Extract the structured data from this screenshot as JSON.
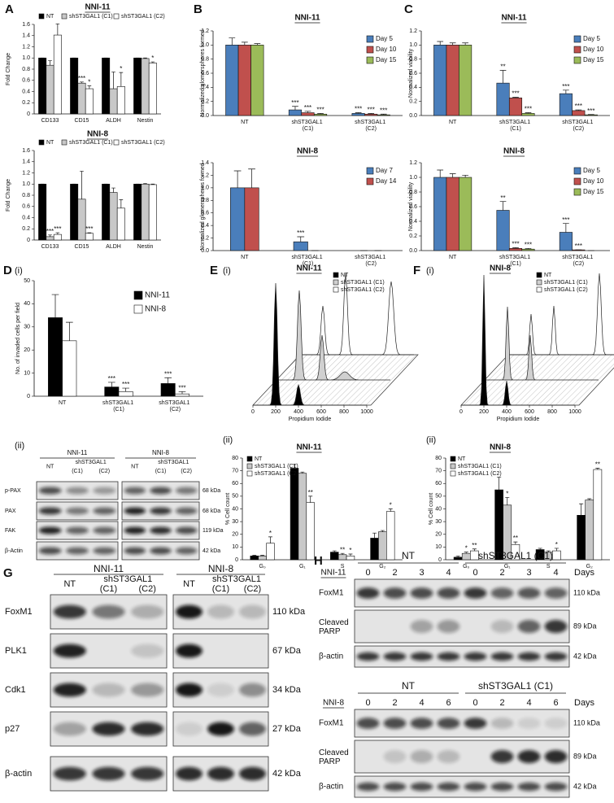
{
  "labels": [
    "A",
    "B",
    "C",
    "D",
    "(i)",
    "(ii)",
    "E",
    "(i)",
    "(ii)",
    "F",
    "(i)",
    "(ii)",
    "G",
    "H"
  ],
  "chart_data": [
    {
      "type": "bar",
      "title": "NNI-11",
      "ylabel": "Fold Change",
      "legend": "top",
      "categories": [
        "CD133",
        "CD15",
        "ALDH",
        "Nestin"
      ],
      "ylim": [
        0,
        1.6
      ],
      "yticks": [
        0,
        0.2,
        0.4,
        0.6,
        0.8,
        {
          "value": 1,
          "label": "1.0"
        },
        1.2,
        1.4,
        1.6
      ],
      "series": [
        {
          "name": "NT",
          "color": "#000000",
          "values": [
            1,
            1,
            1,
            1
          ],
          "errors": [
            0,
            0,
            0,
            0
          ],
          "stars": [
            null,
            null,
            null,
            null
          ]
        },
        {
          "name": "shST3GAL1 (C1)",
          "color": "#c8c8c8",
          "values": [
            0.87,
            0.55,
            0.45,
            0.99
          ],
          "errors": [
            0.08,
            0.02,
            0.3,
            0.01
          ],
          "stars": [
            null,
            "***",
            null,
            null
          ]
        },
        {
          "name": "shST3GAL1 (C2)",
          "color": "#ffffff",
          "values": [
            1.41,
            0.45,
            0.49,
            0.91
          ],
          "errors": [
            0.2,
            0.05,
            0.25,
            0.02
          ],
          "stars": [
            null,
            "*",
            "*",
            "*"
          ]
        }
      ]
    },
    {
      "type": "bar",
      "title": "NNI-8",
      "ylabel": "Fold Change",
      "legend": "top",
      "categories": [
        "CD133",
        "CD15",
        "ALDH",
        "Nestin"
      ],
      "ylim": [
        0,
        1.6
      ],
      "yticks": [
        0,
        0.2,
        0.4,
        0.6,
        0.8,
        {
          "value": 1,
          "label": "1.0"
        },
        1.2,
        1.4,
        1.6
      ],
      "series": [
        {
          "name": "NT",
          "color": "#000000",
          "values": [
            1,
            1,
            1,
            1
          ],
          "errors": [
            0,
            0,
            0,
            0
          ],
          "stars": [
            null,
            null,
            null,
            null
          ]
        },
        {
          "name": "shST3GAL1 (C1)",
          "color": "#c8c8c8",
          "values": [
            0.06,
            0.73,
            0.85,
            1.0
          ],
          "errors": [
            0.03,
            0.5,
            0.08,
            0.01
          ],
          "stars": [
            "***",
            null,
            null,
            null
          ]
        },
        {
          "name": "shST3GAL1 (C2)",
          "color": "#ffffff",
          "values": [
            0.1,
            0.12,
            0.57,
            0.99
          ],
          "errors": [
            0.03,
            0.01,
            0.15,
            0.01
          ],
          "stars": [
            "***",
            "***",
            null,
            null
          ]
        }
      ]
    },
    {
      "type": "bar",
      "title": "NNI-11",
      "ylabel": "Normalized glomerspheres formed",
      "legend": "right",
      "categories": [
        "NT",
        "shST3GAL1 (C1)",
        "shST3GAL1 (C2)"
      ],
      "ylim": [
        0,
        1.2
      ],
      "yticks": [
        {
          "value": 0,
          "label": "0.0"
        },
        0.2,
        0.4,
        0.6,
        0.8,
        {
          "value": 1,
          "label": "1.0"
        },
        1.2
      ],
      "series": [
        {
          "name": "Day 5",
          "color": "#4a7ebb",
          "values": [
            1,
            0.08,
            0.03
          ],
          "errors": [
            0.1,
            0.05,
            0.01
          ],
          "stars": [
            null,
            "***",
            "***"
          ]
        },
        {
          "name": "Day 10",
          "color": "#c0504d",
          "values": [
            1,
            0.04,
            0.02
          ],
          "errors": [
            0.04,
            0.02,
            0.01
          ],
          "stars": [
            null,
            "***",
            "***"
          ]
        },
        {
          "name": "Day 15",
          "color": "#9bbb59",
          "values": [
            1,
            0.02,
            0.01
          ],
          "errors": [
            0.02,
            0.01,
            0.01
          ],
          "stars": [
            null,
            "***",
            "***"
          ]
        }
      ]
    },
    {
      "type": "bar",
      "title": "NNI-8",
      "ylabel": "Normalized glomerspheres formed",
      "legend": "right",
      "categories": [
        "NT",
        "shST3GAL1 (C1)",
        "shST3GAL1 (C2)"
      ],
      "ylim": [
        0,
        1.4
      ],
      "yticks": [
        {
          "value": 0,
          "label": "0.0"
        },
        0.2,
        0.4,
        0.6,
        0.8,
        {
          "value": 1,
          "label": "1.0"
        },
        1.2,
        1.4
      ],
      "series": [
        {
          "name": "Day 7",
          "color": "#4a7ebb",
          "values": [
            1,
            0.14,
            0
          ],
          "errors": [
            0.27,
            0.08,
            0
          ],
          "stars": [
            null,
            "***",
            null
          ]
        },
        {
          "name": "Day 14",
          "color": "#c0504d",
          "values": [
            1,
            0,
            0
          ],
          "errors": [
            0.3,
            0,
            0
          ],
          "stars": [
            null,
            null,
            null
          ]
        }
      ]
    },
    {
      "type": "bar",
      "title": "NNI-11",
      "ylabel": "Normalized viability",
      "legend": "right",
      "categories": [
        "NT",
        "shST3GAL1 (C1)",
        "shST3GAL1 (C2)"
      ],
      "ylim": [
        0,
        1.2
      ],
      "yticks": [
        {
          "value": 0,
          "label": "0.0"
        },
        0.2,
        0.4,
        0.6,
        0.8,
        {
          "value": 1,
          "label": "1.0"
        },
        1.2
      ],
      "series": [
        {
          "name": "Day 5",
          "color": "#4a7ebb",
          "values": [
            1,
            0.46,
            0.31
          ],
          "errors": [
            0.05,
            0.18,
            0.05
          ],
          "stars": [
            null,
            "**",
            "***"
          ]
        },
        {
          "name": "Day 10",
          "color": "#c0504d",
          "values": [
            1,
            0.25,
            0.07
          ],
          "errors": [
            0.03,
            0.01,
            0.01
          ],
          "stars": [
            null,
            "***",
            "***"
          ]
        },
        {
          "name": "Day 15",
          "color": "#9bbb59",
          "values": [
            1,
            0.03,
            0.01
          ],
          "errors": [
            0.03,
            0.01,
            0.005
          ],
          "stars": [
            null,
            "***",
            "***"
          ]
        }
      ]
    },
    {
      "type": "bar",
      "title": "NNI-8",
      "ylabel": "Normalized viability",
      "legend": "right",
      "categories": [
        "NT",
        "shST3GAL1 (C1)",
        "shST3GAL1 (C2)"
      ],
      "ylim": [
        0,
        1.2
      ],
      "yticks": [
        {
          "value": 0,
          "label": "0.0"
        },
        0.2,
        0.4,
        0.6,
        0.8,
        {
          "value": 1,
          "label": "1.0"
        },
        1.2
      ],
      "series": [
        {
          "name": "Day 5",
          "color": "#4a7ebb",
          "values": [
            1,
            0.55,
            0.25
          ],
          "errors": [
            0.1,
            0.12,
            0.12
          ],
          "stars": [
            null,
            "**",
            "***"
          ]
        },
        {
          "name": "Day 10",
          "color": "#c0504d",
          "values": [
            1,
            0.03,
            0.01
          ],
          "errors": [
            0.05,
            0.01,
            0
          ],
          "stars": [
            null,
            "***",
            "***"
          ]
        },
        {
          "name": "Day 15",
          "color": "#9bbb59",
          "values": [
            1,
            0.02,
            0
          ],
          "errors": [
            0.03,
            0.01,
            0
          ],
          "stars": [
            null,
            "***",
            null
          ]
        }
      ]
    },
    {
      "type": "bar",
      "ylabel": "No. of invaded cells per field",
      "legend": "top-right",
      "categories": [
        "NT",
        "shST3GAL1 (C1)",
        "shST3GAL1 (C2)"
      ],
      "ylim": [
        0,
        50
      ],
      "yticks": [
        0,
        10,
        20,
        30,
        40,
        50
      ],
      "series": [
        {
          "name": "NNI-11",
          "color": "#000000",
          "values": [
            34,
            4,
            5.5
          ],
          "errors": [
            10,
            2,
            2.5
          ],
          "stars": [
            null,
            "***",
            "***"
          ]
        },
        {
          "name": "NNI-8",
          "color": "#ffffff",
          "values": [
            24,
            2,
            1
          ],
          "errors": [
            8,
            1.5,
            1
          ],
          "stars": [
            null,
            "***",
            "***"
          ]
        }
      ]
    },
    {
      "type": "bar",
      "title": "NNI-11",
      "ylabel": "% Cell count",
      "legend": "top-left",
      "categories": [
        "G₀",
        "G₁",
        "S",
        "G₂"
      ],
      "ylim": [
        0,
        80
      ],
      "yticks": [
        0,
        10,
        20,
        30,
        40,
        50,
        60,
        70,
        80
      ],
      "series": [
        {
          "name": "NT",
          "color": "#000000",
          "values": [
            3,
            72,
            6,
            17
          ],
          "errors": [
            0.5,
            3,
            1,
            4
          ],
          "stars": [
            null,
            null,
            null,
            null
          ]
        },
        {
          "name": "shST3GAL1 (C1)",
          "color": "#c8c8c8",
          "values": [
            3,
            68,
            4,
            22
          ],
          "errors": [
            0.5,
            1,
            1,
            1
          ],
          "stars": [
            null,
            null,
            "**",
            null
          ]
        },
        {
          "name": "shST3GAL1 (C2)",
          "color": "#ffffff",
          "values": [
            13,
            45,
            3,
            38
          ],
          "errors": [
            5,
            5,
            1.5,
            2
          ],
          "stars": [
            "*",
            "**",
            "*",
            "*"
          ]
        }
      ]
    },
    {
      "type": "bar",
      "title": "NNI-8",
      "ylabel": "% Cell count",
      "legend": "top-left",
      "categories": [
        "G₀",
        "G₁",
        "S",
        "G₂"
      ],
      "ylim": [
        0,
        80
      ],
      "yticks": [
        0,
        10,
        20,
        30,
        40,
        50,
        60,
        70,
        80
      ],
      "series": [
        {
          "name": "NT",
          "color": "#000000",
          "values": [
            2,
            55,
            8,
            35
          ],
          "errors": [
            1,
            10,
            1,
            9
          ],
          "stars": [
            null,
            null,
            null,
            null
          ]
        },
        {
          "name": "shST3GAL1 (C1)",
          "color": "#c8c8c8",
          "values": [
            5,
            43,
            6,
            47
          ],
          "errors": [
            1,
            6,
            1,
            1
          ],
          "stars": [
            "*",
            "*",
            null,
            null
          ]
        },
        {
          "name": "shST3GAL1 (C2)",
          "color": "#ffffff",
          "values": [
            7,
            12,
            7,
            71
          ],
          "errors": [
            1.5,
            2,
            2,
            1
          ],
          "stars": [
            "**",
            "**",
            "*",
            "**"
          ]
        }
      ]
    }
  ],
  "flow": [
    {
      "title": "NNI-11",
      "xlabel": "Propidium Iodide",
      "xticks": [
        0,
        200,
        400,
        600,
        800,
        1000
      ],
      "legend": [
        "NT",
        "shST3GAL1 (C1)",
        "shST3GAL1 (C2)"
      ]
    },
    {
      "title": "NNI-8",
      "xlabel": "Propidium Iodide",
      "xticks": [
        0,
        200,
        400,
        600,
        800,
        1000
      ],
      "legend": [
        "NT",
        "shST3GAL1 (C1)",
        "shST3GAL1 (C2)"
      ]
    }
  ],
  "blots": [
    {
      "groups": [
        {
          "name": "NNI-11",
          "sub": "shST3GAL1",
          "lanes": [
            "NT",
            "(C1)",
            "(C2)"
          ]
        },
        {
          "name": "NNI-8",
          "sub": "shST3GAL1",
          "lanes": [
            "NT",
            "(C1)",
            "(C2)"
          ]
        }
      ],
      "rows": [
        {
          "name": "p-PAX",
          "size": "68 kDa"
        },
        {
          "name": "PAX",
          "size": "68 kDa"
        },
        {
          "name": "FAK",
          "size": "119 kDa"
        },
        {
          "name": "β-Actin",
          "size": "42 kDa"
        }
      ]
    },
    {
      "groups": [
        {
          "name": "NNI-11",
          "sub": "shST3GAL1",
          "lanes": [
            "NT",
            "(C1)",
            "(C2)"
          ]
        },
        {
          "name": "NNI-8",
          "sub": "shST3GAL1",
          "lanes": [
            "NT",
            "(C1)",
            "(C2)"
          ]
        }
      ],
      "rows": [
        {
          "name": "FoxM1",
          "size": "110 kDa"
        },
        {
          "name": "PLK1",
          "size": "67 kDa"
        },
        {
          "name": "Cdk1",
          "size": "34 kDa"
        },
        {
          "name": "p27",
          "size": "27 kDa"
        },
        {
          "name": "β-actin",
          "size": "42 kDa"
        }
      ]
    },
    {
      "sections": [
        {
          "name": "NNI-11",
          "groups": [
            "NT",
            "shST3GAL1 (C1)"
          ],
          "days": [
            0,
            2,
            3,
            4,
            0,
            2,
            3,
            4
          ],
          "unit": "Days",
          "rows": [
            {
              "name": "FoxM1",
              "size": "110 kDa"
            },
            {
              "name": "Cleaved PARP",
              "size": "89 kDa"
            },
            {
              "name": "β-actin",
              "size": "42 kDa"
            }
          ]
        },
        {
          "name": "NNI-8",
          "groups": [
            "NT",
            "shST3GAL1 (C1)"
          ],
          "days": [
            0,
            2,
            4,
            6,
            0,
            2,
            4,
            6
          ],
          "unit": "Days",
          "rows": [
            {
              "name": "FoxM1",
              "size": "110 kDa"
            },
            {
              "name": "Cleaved PARP",
              "size": "89 kDa"
            },
            {
              "name": "β-actin",
              "size": "42 kDa"
            }
          ]
        }
      ]
    }
  ]
}
